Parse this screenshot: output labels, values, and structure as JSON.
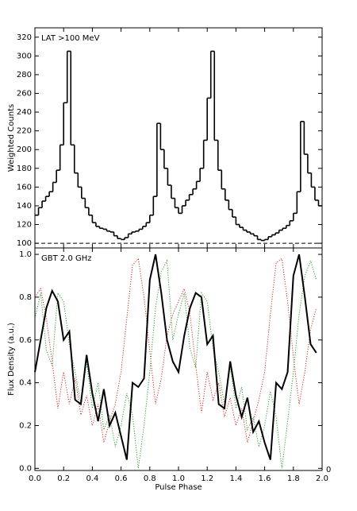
{
  "chart_data": [
    {
      "type": "histogram",
      "ylabel": "Weighted Counts",
      "annotation": "LAT >100 MeV",
      "color": "#000000",
      "xlim": [
        0,
        2
      ],
      "ylim": [
        95,
        330
      ],
      "yticks": [
        100,
        120,
        140,
        160,
        180,
        200,
        220,
        240,
        260,
        280,
        300,
        320
      ],
      "baseline": 100,
      "bins": [
        0,
        0.025,
        0.05,
        0.075,
        0.1,
        0.125,
        0.15,
        0.175,
        0.2,
        0.225,
        0.25,
        0.275,
        0.3,
        0.325,
        0.35,
        0.375,
        0.4,
        0.425,
        0.45,
        0.475,
        0.5,
        0.525,
        0.55,
        0.575,
        0.6,
        0.625,
        0.65,
        0.675,
        0.7,
        0.725,
        0.75,
        0.775,
        0.8,
        0.825,
        0.85,
        0.875,
        0.9,
        0.925,
        0.95,
        0.975,
        1,
        1.025,
        1.05,
        1.075,
        1.1,
        1.125,
        1.15,
        1.175,
        1.2,
        1.225,
        1.25,
        1.275,
        1.3,
        1.325,
        1.35,
        1.375,
        1.4,
        1.425,
        1.45,
        1.475,
        1.5,
        1.525,
        1.55,
        1.575,
        1.6,
        1.625,
        1.65,
        1.675,
        1.7,
        1.725,
        1.75,
        1.775,
        1.8,
        1.825,
        1.85,
        1.875,
        1.9,
        1.925,
        1.95,
        1.975,
        2
      ],
      "values": [
        130,
        138,
        145,
        150,
        155,
        165,
        178,
        205,
        250,
        305,
        205,
        175,
        160,
        148,
        138,
        130,
        122,
        118,
        116,
        115,
        113,
        112,
        108,
        105,
        104,
        106,
        110,
        112,
        113,
        115,
        118,
        122,
        130,
        150,
        228,
        200,
        180,
        162,
        148,
        138,
        132,
        140,
        146,
        152,
        158,
        166,
        180,
        210,
        255,
        305,
        210,
        178,
        158,
        146,
        136,
        128,
        120,
        117,
        114,
        112,
        110,
        108,
        104,
        103,
        104,
        107,
        109,
        111,
        114,
        116,
        119,
        124,
        132,
        155,
        230,
        195,
        175,
        160,
        146,
        140
      ]
    },
    {
      "type": "line",
      "ylabel": "Flux Density (a.u.)",
      "xlabel": "Pulse Phase",
      "annotation": "GBT 2.0 GHz",
      "corner_label": "0",
      "xlim": [
        0,
        2
      ],
      "ylim": [
        -0.01,
        1.03
      ],
      "xticks": [
        {
          "value": 0,
          "label": "0.0"
        },
        0.2,
        0.4,
        0.6,
        0.8,
        {
          "value": 1,
          "label": "1.0"
        },
        1.2,
        1.4,
        1.6,
        1.8,
        {
          "value": 2,
          "label": "2.0"
        }
      ],
      "yticks": [
        {
          "value": 0,
          "label": "0.0"
        },
        0.2,
        0.4,
        0.6,
        0.8,
        {
          "value": 1,
          "label": "1.0"
        }
      ],
      "x": [
        0,
        0.04,
        0.08,
        0.12,
        0.16,
        0.2,
        0.24,
        0.28,
        0.32,
        0.36,
        0.4,
        0.44,
        0.48,
        0.52,
        0.56,
        0.6,
        0.64,
        0.68,
        0.72,
        0.76,
        0.8,
        0.84,
        0.88,
        0.92,
        0.96,
        1,
        1.04,
        1.08,
        1.12,
        1.16,
        1.2,
        1.24,
        1.28,
        1.32,
        1.36,
        1.4,
        1.44,
        1.48,
        1.52,
        1.56,
        1.6,
        1.64,
        1.68,
        1.72,
        1.76,
        1.8,
        1.84,
        1.88,
        1.92,
        1.96
      ],
      "series": [
        {
          "color": "#d62728",
          "linestyle": "dotted",
          "values": [
            0.8,
            0.84,
            0.7,
            0.5,
            0.28,
            0.45,
            0.3,
            0.42,
            0.25,
            0.34,
            0.2,
            0.3,
            0.12,
            0.22,
            0.3,
            0.45,
            0.7,
            0.95,
            0.98,
            0.8,
            0.55,
            0.3,
            0.42,
            0.62,
            0.72,
            0.78,
            0.84,
            0.72,
            0.48,
            0.26,
            0.45,
            0.32,
            0.4,
            0.24,
            0.33,
            0.2,
            0.28,
            0.12,
            0.22,
            0.32,
            0.45,
            0.72,
            0.96,
            0.98,
            0.78,
            0.52,
            0.3,
            0.45,
            0.65,
            0.75
          ]
        },
        {
          "color": "#2ca02c",
          "linestyle": "dotted",
          "values": [
            0.7,
            0.82,
            0.55,
            0.48,
            0.82,
            0.78,
            0.58,
            0.45,
            0.3,
            0.5,
            0.28,
            0.4,
            0.18,
            0.25,
            0.1,
            0.2,
            0.35,
            0.25,
            0.0,
            0.2,
            0.45,
            0.75,
            0.92,
            0.97,
            0.6,
            0.72,
            0.82,
            0.56,
            0.47,
            0.82,
            0.78,
            0.56,
            0.45,
            0.3,
            0.48,
            0.28,
            0.38,
            0.18,
            0.24,
            0.1,
            0.2,
            0.36,
            0.24,
            0.0,
            0.22,
            0.45,
            0.72,
            0.9,
            0.97,
            0.88
          ]
        },
        {
          "color": "#000000",
          "linestyle": "solid",
          "values": [
            0.45,
            0.6,
            0.75,
            0.83,
            0.78,
            0.6,
            0.64,
            0.32,
            0.3,
            0.53,
            0.35,
            0.22,
            0.37,
            0.2,
            0.26,
            0.15,
            0.04,
            0.4,
            0.38,
            0.42,
            0.88,
            1.0,
            0.82,
            0.6,
            0.5,
            0.45,
            0.62,
            0.75,
            0.82,
            0.8,
            0.58,
            0.62,
            0.3,
            0.28,
            0.5,
            0.34,
            0.24,
            0.33,
            0.17,
            0.22,
            0.12,
            0.04,
            0.4,
            0.37,
            0.45,
            0.9,
            1.0,
            0.8,
            0.58,
            0.54
          ]
        }
      ]
    }
  ]
}
